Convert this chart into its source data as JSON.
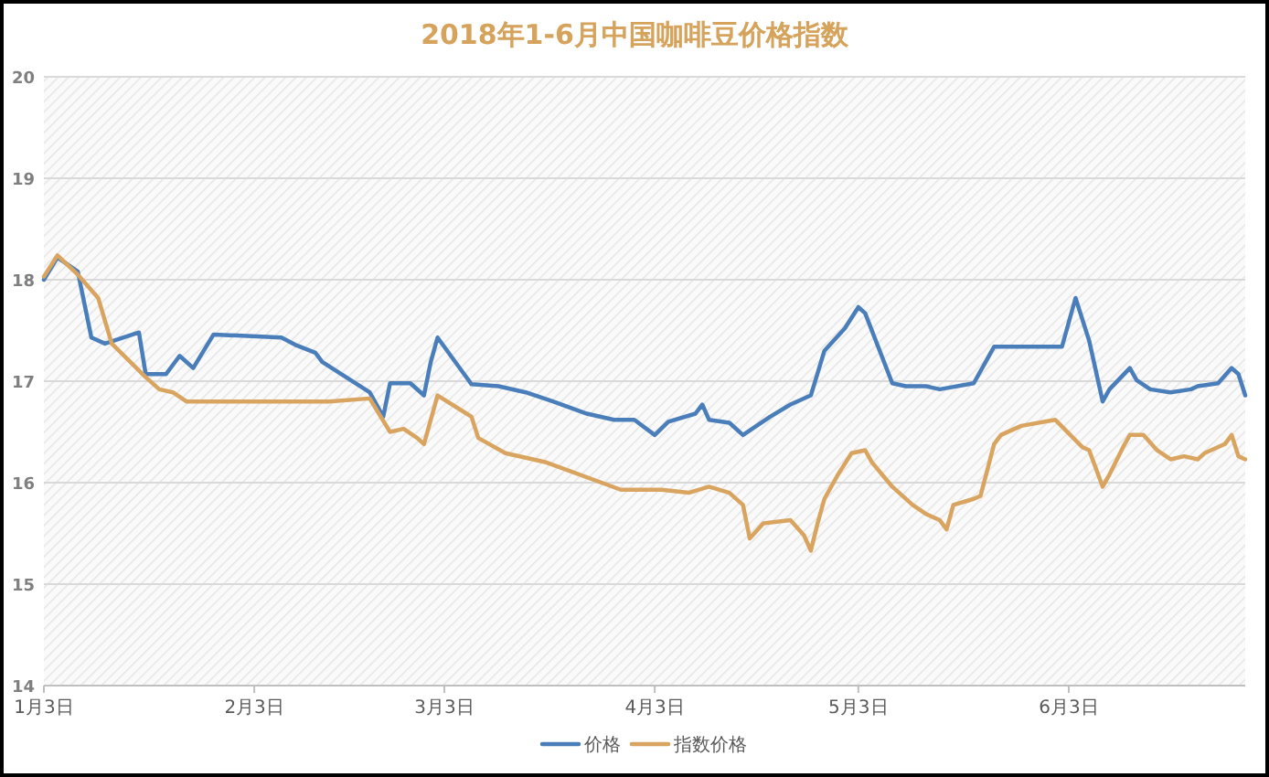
{
  "chart_data": {
    "type": "line",
    "title": "2018年1-6月中国咖啡豆价格指数",
    "xlim": [
      "2018-01-03",
      "2018-06-29"
    ],
    "xticks": [
      {
        "value": "2018-01-03",
        "label": "1月3日"
      },
      {
        "value": "2018-02-03",
        "label": "2月3日"
      },
      {
        "value": "2018-03-03",
        "label": "3月3日"
      },
      {
        "value": "2018-04-03",
        "label": "4月3日"
      },
      {
        "value": "2018-05-03",
        "label": "5月3日"
      },
      {
        "value": "2018-06-03",
        "label": "6月3日"
      }
    ],
    "ylim": [
      14,
      20
    ],
    "yticks": [
      14,
      15,
      16,
      17,
      18,
      19,
      20
    ],
    "grid": "y",
    "legend": "bottom",
    "series": [
      {
        "name": "价格",
        "color": "#4a7ebb",
        "x": [
          "2018-01-03",
          "2018-01-05",
          "2018-01-08",
          "2018-01-10",
          "2018-01-12",
          "2018-01-17",
          "2018-01-18",
          "2018-01-21",
          "2018-01-23",
          "2018-01-25",
          "2018-01-28",
          "2018-02-07",
          "2018-02-09",
          "2018-02-12",
          "2018-02-13",
          "2018-02-20",
          "2018-02-22",
          "2018-02-23",
          "2018-02-26",
          "2018-02-28",
          "2018-03-01",
          "2018-03-02",
          "2018-03-07",
          "2018-03-11",
          "2018-03-15",
          "2018-03-19",
          "2018-03-24",
          "2018-03-28",
          "2018-03-31",
          "2018-04-03",
          "2018-04-05",
          "2018-04-09",
          "2018-04-10",
          "2018-04-11",
          "2018-04-14",
          "2018-04-16",
          "2018-04-20",
          "2018-04-23",
          "2018-04-26",
          "2018-04-28",
          "2018-05-01",
          "2018-05-03",
          "2018-05-04",
          "2018-05-08",
          "2018-05-10",
          "2018-05-13",
          "2018-05-15",
          "2018-05-20",
          "2018-05-22",
          "2018-05-23",
          "2018-05-28",
          "2018-06-02",
          "2018-06-04",
          "2018-06-06",
          "2018-06-08",
          "2018-06-09",
          "2018-06-12",
          "2018-06-13",
          "2018-06-15",
          "2018-06-18",
          "2018-06-21",
          "2018-06-22",
          "2018-06-25",
          "2018-06-27",
          "2018-06-28",
          "2018-06-29"
        ],
        "values": [
          18.0,
          18.22,
          18.08,
          17.43,
          17.37,
          17.48,
          17.07,
          17.07,
          17.25,
          17.13,
          17.46,
          17.43,
          17.36,
          17.28,
          17.19,
          16.89,
          16.65,
          16.98,
          16.98,
          16.86,
          17.19,
          17.43,
          16.97,
          16.95,
          16.89,
          16.8,
          16.68,
          16.62,
          16.62,
          16.47,
          16.6,
          16.68,
          16.77,
          16.62,
          16.59,
          16.47,
          16.65,
          16.77,
          16.86,
          17.3,
          17.52,
          17.73,
          17.67,
          16.98,
          16.95,
          16.95,
          16.92,
          16.98,
          17.22,
          17.34,
          17.34,
          17.34,
          17.82,
          17.4,
          16.8,
          16.92,
          17.13,
          17.01,
          16.92,
          16.89,
          16.92,
          16.95,
          16.98,
          17.13,
          17.07,
          16.86
        ]
      },
      {
        "name": "指数价格",
        "color": "#d9a45f",
        "x": [
          "2018-01-03",
          "2018-01-05",
          "2018-01-08",
          "2018-01-11",
          "2018-01-13",
          "2018-01-18",
          "2018-01-20",
          "2018-01-22",
          "2018-01-24",
          "2018-02-14",
          "2018-02-20",
          "2018-02-23",
          "2018-02-25",
          "2018-02-27",
          "2018-02-28",
          "2018-03-02",
          "2018-03-07",
          "2018-03-08",
          "2018-03-12",
          "2018-03-18",
          "2018-03-29",
          "2018-04-04",
          "2018-04-08",
          "2018-04-11",
          "2018-04-14",
          "2018-04-16",
          "2018-04-17",
          "2018-04-19",
          "2018-04-23",
          "2018-04-25",
          "2018-04-26",
          "2018-04-27",
          "2018-04-28",
          "2018-04-30",
          "2018-05-02",
          "2018-05-04",
          "2018-05-05",
          "2018-05-08",
          "2018-05-11",
          "2018-05-13",
          "2018-05-15",
          "2018-05-16",
          "2018-05-17",
          "2018-05-20",
          "2018-05-21",
          "2018-05-23",
          "2018-05-24",
          "2018-05-27",
          "2018-06-01",
          "2018-06-05",
          "2018-06-06",
          "2018-06-08",
          "2018-06-09",
          "2018-06-11",
          "2018-06-12",
          "2018-06-14",
          "2018-06-16",
          "2018-06-18",
          "2018-06-20",
          "2018-06-22",
          "2018-06-23",
          "2018-06-26",
          "2018-06-27",
          "2018-06-28",
          "2018-06-29"
        ],
        "values": [
          18.03,
          18.24,
          18.05,
          17.82,
          17.37,
          17.04,
          16.92,
          16.89,
          16.8,
          16.8,
          16.83,
          16.5,
          16.53,
          16.44,
          16.38,
          16.86,
          16.65,
          16.44,
          16.29,
          16.2,
          15.93,
          15.93,
          15.9,
          15.96,
          15.9,
          15.78,
          15.45,
          15.6,
          15.63,
          15.48,
          15.33,
          15.6,
          15.84,
          16.08,
          16.29,
          16.32,
          16.2,
          15.96,
          15.78,
          15.69,
          15.63,
          15.54,
          15.78,
          15.84,
          15.87,
          16.38,
          16.47,
          16.56,
          16.62,
          16.35,
          16.32,
          15.96,
          16.08,
          16.35,
          16.47,
          16.47,
          16.32,
          16.23,
          16.26,
          16.23,
          16.29,
          16.38,
          16.47,
          16.26,
          16.23
        ]
      }
    ]
  }
}
